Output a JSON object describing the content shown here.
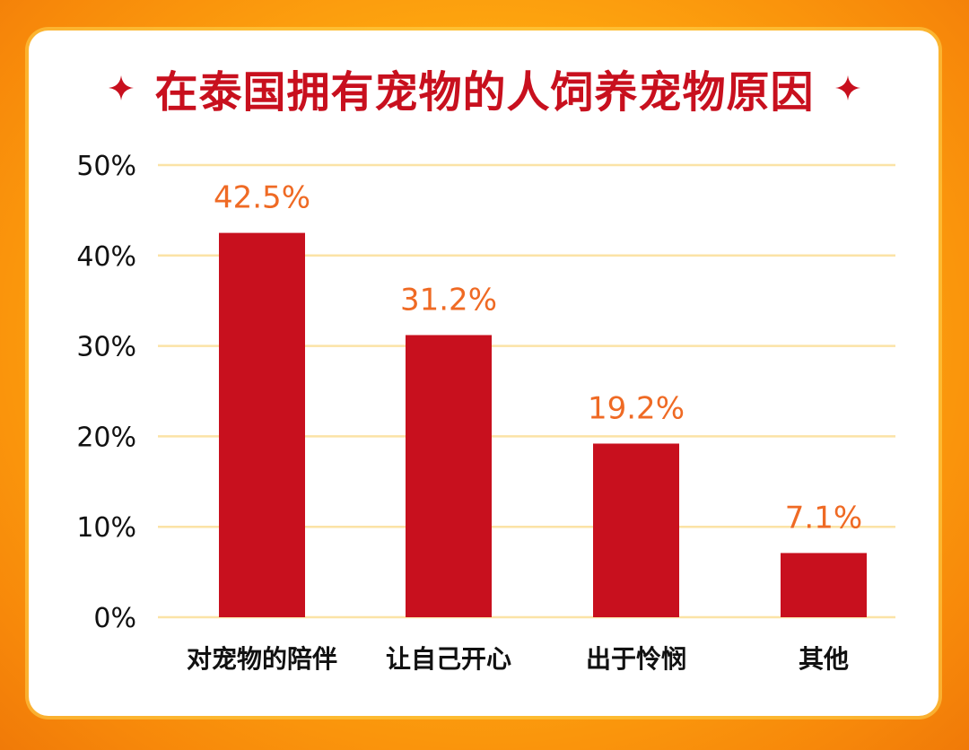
{
  "title": "在泰国拥有宠物的人饲养宠物原因",
  "icons": {
    "left": "sparkle-icon",
    "right": "sparkle-icon"
  },
  "colors": {
    "bar": "#c8101e",
    "data_label": "#ef6a24",
    "grid": "#fbe3a6",
    "title": "#c8101e"
  },
  "chart_data": {
    "type": "bar",
    "title": "在泰国拥有宠物的人饲养宠物原因",
    "categories": [
      "对宠物的陪伴",
      "让自己开心",
      "出于怜悯",
      "其他"
    ],
    "values": [
      42.5,
      31.2,
      19.2,
      7.1
    ],
    "data_labels": [
      "42.5%",
      "31.2%",
      "19.2%",
      "7.1%"
    ],
    "ylim": [
      0,
      50
    ],
    "yticks": [
      0,
      10,
      20,
      30,
      40,
      50
    ],
    "ytick_labels": [
      "0%",
      "10%",
      "20%",
      "30%",
      "40%",
      "50%"
    ],
    "grid": true,
    "legend": "none"
  }
}
